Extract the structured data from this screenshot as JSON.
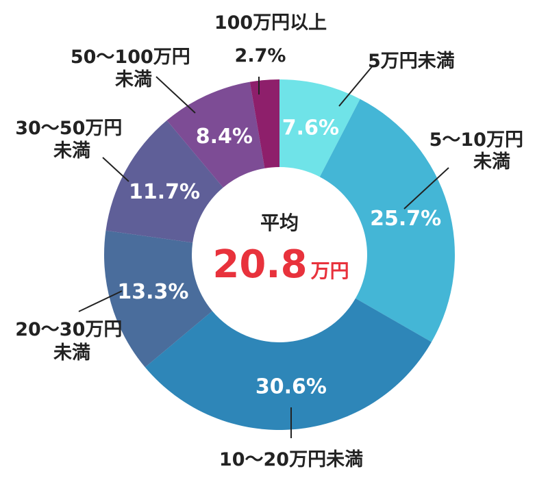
{
  "chart_data": {
    "type": "pie",
    "categories": [
      "5万円未満",
      "5〜10万円未満",
      "10〜20万円未満",
      "20〜30万円未満",
      "30〜50万円未満",
      "50〜100万円未満",
      "100万円以上"
    ],
    "values": [
      7.6,
      25.7,
      30.6,
      13.3,
      11.7,
      8.4,
      2.7
    ],
    "value_labels": [
      "7.6%",
      "25.7%",
      "30.6%",
      "13.3%",
      "11.7%",
      "8.4%",
      "2.7%"
    ],
    "colors": [
      "#6fe3e8",
      "#44b6d6",
      "#2e86b8",
      "#4a6d9c",
      "#5f5f98",
      "#7d4c95",
      "#8e1f6b"
    ],
    "center": {
      "label": "平均",
      "value": "20.8",
      "unit": "万円"
    }
  }
}
